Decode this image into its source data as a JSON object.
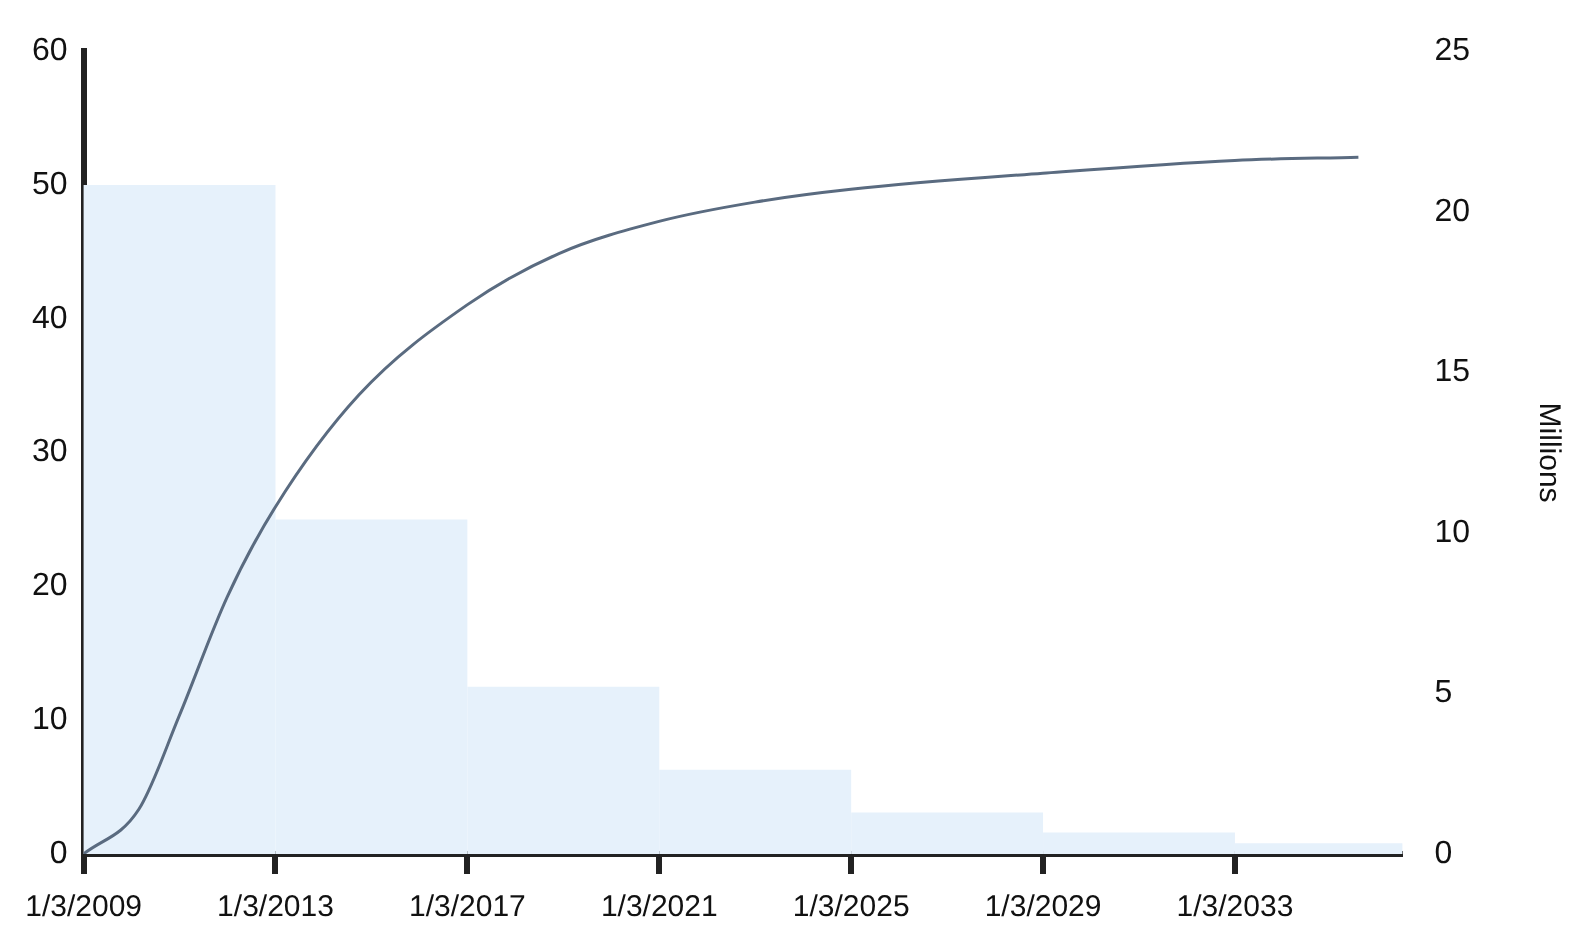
{
  "chart_data": {
    "type": "histogram",
    "bins": [
      "2009-01-03",
      "2013-01-03",
      "2017-01-03",
      "2021-01-03",
      "2025-01-03",
      "2029-01-03",
      "2033-01-03",
      "2036-07"
    ],
    "values": [
      50,
      25,
      12.5,
      6.3,
      3.1,
      1.6,
      0.8
    ],
    "color": "#e6f1fb",
    "xlim": [
      "2009-01-03",
      "2036-07"
    ],
    "xticks": [
      {
        "value": "2009-01-03",
        "label": "1/3/2009"
      },
      {
        "value": "2013-01-03",
        "label": "1/3/2013"
      },
      {
        "value": "2017-01-03",
        "label": "1/3/2017"
      },
      {
        "value": "2021-01-03",
        "label": "1/3/2021"
      },
      {
        "value": "2025-01-03",
        "label": "1/3/2025"
      },
      {
        "value": "2029-01-03",
        "label": "1/3/2029"
      },
      {
        "value": "2033-01-03",
        "label": "1/3/2033"
      }
    ],
    "ylim": [
      0,
      60
    ],
    "yticks": [
      0,
      10,
      20,
      30,
      40,
      50,
      60
    ],
    "y2lim": [
      0,
      25
    ],
    "y2ticks": [
      0,
      5,
      10,
      15,
      20,
      25
    ],
    "y2label": "Millions",
    "grid": false,
    "legend": false,
    "series": [
      {
        "type": "line",
        "axis": "y2",
        "color": "#5a6b80",
        "x": [
          "2009-01-03",
          "2010-03",
          "2011-01",
          "2012-01",
          "2013-01",
          "2014-10",
          "2017-01",
          "2018-12",
          "2021-01",
          "2023-01",
          "2025-01",
          "2029-01",
          "2033-01",
          "2035-08"
        ],
        "values": [
          0,
          1.4,
          4.3,
          8.0,
          10.8,
          14.3,
          17.1,
          18.7,
          19.7,
          20.3,
          20.7,
          21.2,
          21.6,
          21.7
        ]
      }
    ]
  }
}
